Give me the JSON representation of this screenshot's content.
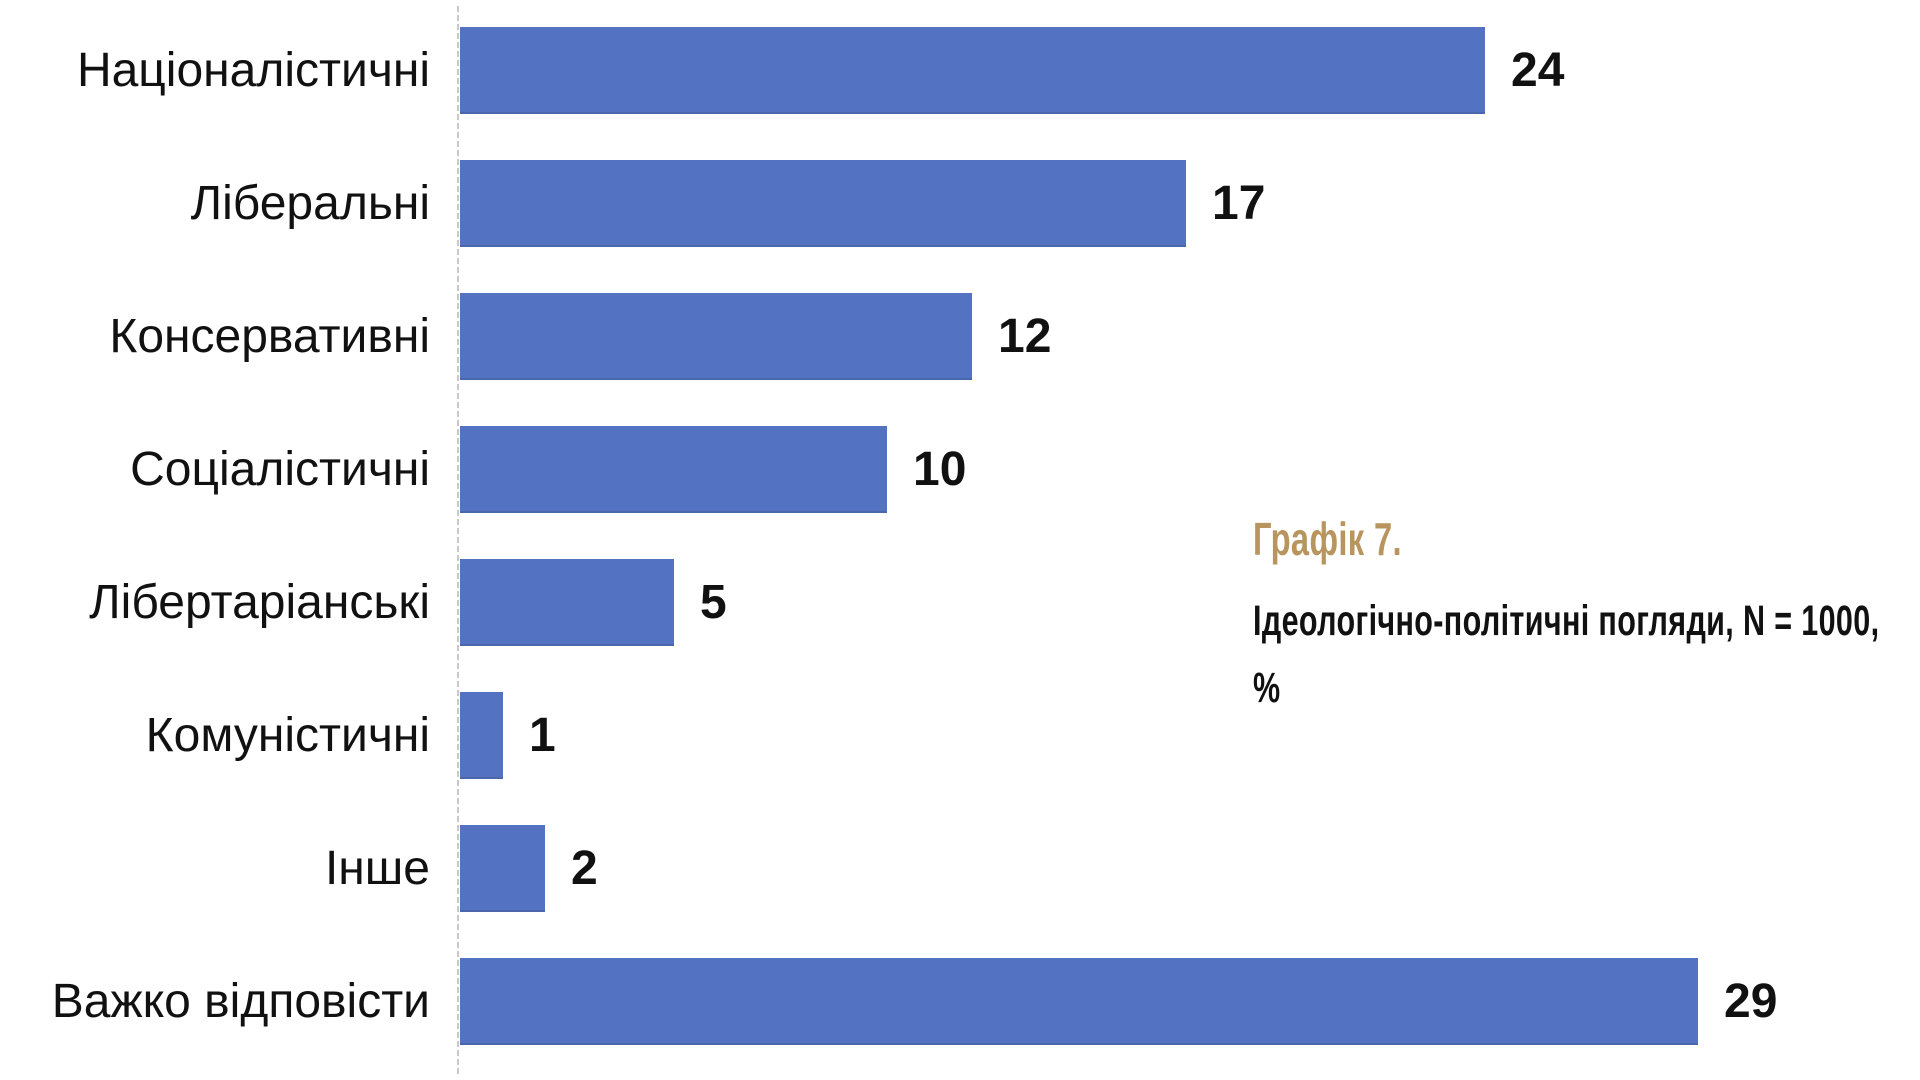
{
  "chart_data": {
    "type": "bar",
    "orientation": "horizontal",
    "categories": [
      "Націоналістичні",
      "Ліберальні",
      "Консервативні",
      "Соціалістичні",
      "Лібертаріанські",
      "Комуністичні",
      "Інше",
      "Важко відповісти"
    ],
    "values": [
      24,
      17,
      12,
      10,
      5,
      1,
      2,
      29
    ],
    "data_labels_shown": true,
    "title": "Графік 7.",
    "subtitle": "Ідеологічно-політичні погляди, N = 1000, %",
    "xlabel": "",
    "ylabel": "",
    "xlim": [
      0,
      30
    ],
    "grid": false,
    "legend": "none",
    "bar_color": "#5372C2",
    "axis_line_color": "#c9c9c9",
    "value_label_color": "#111111"
  },
  "caption": {
    "title": "Графік 7.",
    "line1": "Ідеологічно-політичні погляди, N = 1000,",
    "line2": "%",
    "accent_color": "#B8955E"
  }
}
